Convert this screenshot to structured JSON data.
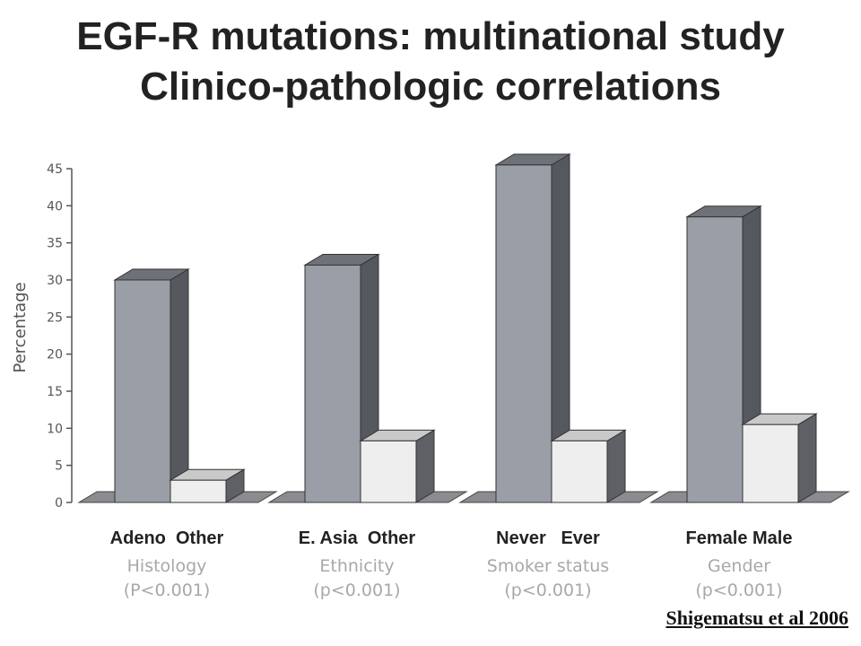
{
  "title_lines": [
    "EGF-R mutations: multinational study",
    "Clinico-pathologic correlations"
  ],
  "source": "Shigematsu et al 2006",
  "colors": {
    "dark_front": "#9a9ea6",
    "dark_side": "#55585e",
    "dark_top": "#6e7178",
    "light_front": "#eeeeee",
    "light_side": "#5e6066",
    "light_top": "#c9c9c9",
    "floor": "#8a8c90",
    "axis": "#555555",
    "group_label": "#222222",
    "sublabel": "#a8a8a8"
  },
  "chart_data": {
    "type": "bar",
    "title": "",
    "ylabel": "Percentage",
    "ylim": [
      0,
      45
    ],
    "yticks": [
      0,
      5,
      10,
      15,
      20,
      25,
      30,
      35,
      40,
      45
    ],
    "groups": [
      {
        "label": "Adeno  Other",
        "category": "Histology",
        "p_value": "(P<0.001)",
        "bars": [
          {
            "name": "Adeno",
            "value": 30
          },
          {
            "name": "Other",
            "value": 3
          }
        ]
      },
      {
        "label": "E. Asia  Other",
        "category": "Ethnicity",
        "p_value": "(p<0.001)",
        "bars": [
          {
            "name": "E. Asia",
            "value": 32
          },
          {
            "name": "Other",
            "value": 8.3
          }
        ]
      },
      {
        "label": "Never   Ever",
        "category": "Smoker status",
        "p_value": "(p<0.001)",
        "bars": [
          {
            "name": "Never",
            "value": 45.5
          },
          {
            "name": "Ever",
            "value": 8.3
          }
        ]
      },
      {
        "label": "Female Male",
        "category": "Gender",
        "p_value": "(p<0.001)",
        "bars": [
          {
            "name": "Female",
            "value": 38.5
          },
          {
            "name": "Male",
            "value": 10.5
          }
        ]
      }
    ]
  }
}
